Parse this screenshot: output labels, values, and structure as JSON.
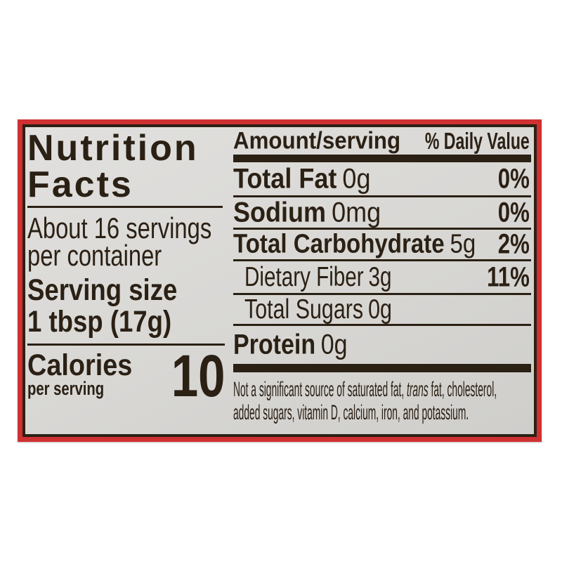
{
  "colors": {
    "frame_red": "#d03031",
    "ink_dark_brown": "#2b2014",
    "panel_gray": "#d9d8d5"
  },
  "label": {
    "left": {
      "title_line1": "Nutrition",
      "title_line2": "Facts",
      "servings_line1": "About 16 servings",
      "servings_line2": "per container",
      "serving_size_label": "Serving size",
      "serving_size_value": "1 tbsp (17g)",
      "calories_label": "Calories",
      "calories_sublabel": "per serving",
      "calories_value": "10"
    },
    "right": {
      "header_amount": "Amount/serving",
      "header_daily_value": "% Daily Value",
      "rows": [
        {
          "name": "Total Fat",
          "amount": "0g",
          "daily_value": "0%"
        },
        {
          "name": "Sodium",
          "amount": "0mg",
          "daily_value": "0%"
        },
        {
          "name": "Total Carbohydrate",
          "amount": "5g",
          "daily_value": "2%"
        },
        {
          "name": "Dietary Fiber",
          "amount": "3g",
          "daily_value": "11%"
        },
        {
          "name": "Total Sugars",
          "amount": "0g",
          "daily_value": ""
        },
        {
          "name": "Protein",
          "amount": "0g",
          "daily_value": ""
        }
      ],
      "footnote": {
        "before_italic": "Not a significant source of saturated fat, ",
        "italic": "trans",
        "after_italic": " fat, cholesterol,",
        "line2": "added sugars, vitamin D, calcium, iron, and potassium."
      }
    }
  }
}
